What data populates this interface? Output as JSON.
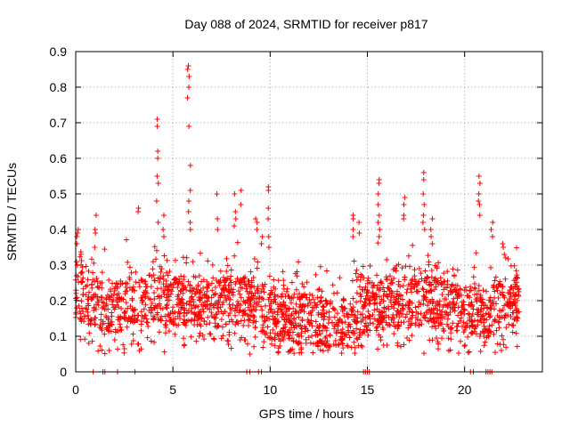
{
  "chart_data": {
    "type": "scatter",
    "title": "Day 088 of 2024, SRMTID for receiver p817",
    "xlabel": "GPS time / hours",
    "ylabel": "SRMTID / TECUs",
    "xlim": [
      0,
      24
    ],
    "ylim": [
      0,
      0.9
    ],
    "grid": true,
    "marker": "+",
    "x_ticks": [
      0,
      5,
      10,
      15,
      20
    ],
    "x_tick_labels": [
      "0",
      "5",
      "10",
      "15",
      "20"
    ],
    "y_ticks": [
      0,
      0.1,
      0.2,
      0.3,
      0.4,
      0.5,
      0.6,
      0.7,
      0.8,
      0.9
    ],
    "y_tick_labels": [
      "0",
      "0.1",
      "0.2",
      "0.3",
      "0.4",
      "0.5",
      "0.6",
      "0.7",
      "0.8",
      "0.9"
    ],
    "series": [
      {
        "name": "SRMTID",
        "color": "#ff0000",
        "baseline": [
          [
            0,
            0.22
          ],
          [
            1,
            0.19
          ],
          [
            2,
            0.18
          ],
          [
            3,
            0.2
          ],
          [
            4,
            0.21
          ],
          [
            5,
            0.2
          ],
          [
            6,
            0.2
          ],
          [
            7,
            0.19
          ],
          [
            8,
            0.2
          ],
          [
            9,
            0.2
          ],
          [
            10,
            0.16
          ],
          [
            11,
            0.15
          ],
          [
            12,
            0.15
          ],
          [
            13,
            0.13
          ],
          [
            14,
            0.14
          ],
          [
            15,
            0.18
          ],
          [
            16,
            0.19
          ],
          [
            17,
            0.2
          ],
          [
            18,
            0.2
          ],
          [
            19,
            0.18
          ],
          [
            20,
            0.18
          ],
          [
            21,
            0.16
          ],
          [
            22,
            0.19
          ],
          [
            22.8,
            0.2
          ]
        ],
        "x_start": 0,
        "x_end": 22.8,
        "points_per_hour": 95,
        "bursts": [
          {
            "x": 0.1,
            "values": [
              0.4,
              0.39,
              0.38,
              0.36
            ]
          },
          {
            "x": 1.0,
            "values": [
              0.44,
              0.4,
              0.39,
              0.35
            ]
          },
          {
            "x": 3.2,
            "values": [
              0.46,
              0.45
            ]
          },
          {
            "x": 4.2,
            "values": [
              0.71,
              0.69,
              0.62,
              0.6,
              0.55,
              0.53,
              0.48,
              0.42
            ]
          },
          {
            "x": 4.5,
            "values": [
              0.44,
              0.4,
              0.38
            ]
          },
          {
            "x": 5.8,
            "values": [
              0.86,
              0.85,
              0.83,
              0.8,
              0.77
            ]
          },
          {
            "x": 5.85,
            "values": [
              0.69,
              0.58,
              0.51,
              0.48,
              0.45,
              0.42,
              0.4
            ]
          },
          {
            "x": 7.3,
            "values": [
              0.5,
              0.43,
              0.4
            ]
          },
          {
            "x": 8.2,
            "values": [
              0.5,
              0.45,
              0.43,
              0.41
            ]
          },
          {
            "x": 8.5,
            "values": [
              0.51,
              0.47
            ]
          },
          {
            "x": 9.3,
            "values": [
              0.43,
              0.42,
              0.4
            ]
          },
          {
            "x": 9.6,
            "values": [
              0.38,
              0.36
            ]
          },
          {
            "x": 9.9,
            "values": [
              0.52,
              0.51,
              0.46,
              0.43,
              0.38,
              0.35
            ]
          },
          {
            "x": 14.3,
            "values": [
              0.44,
              0.43,
              0.4,
              0.38
            ]
          },
          {
            "x": 14.6,
            "values": [
              0.42,
              0.39
            ]
          },
          {
            "x": 15.6,
            "values": [
              0.54,
              0.53,
              0.5,
              0.47,
              0.44,
              0.42,
              0.4,
              0.38
            ]
          },
          {
            "x": 16.9,
            "values": [
              0.49,
              0.47,
              0.44,
              0.43
            ]
          },
          {
            "x": 17.9,
            "values": [
              0.56,
              0.54,
              0.5,
              0.47,
              0.44,
              0.42,
              0.4
            ]
          },
          {
            "x": 18.3,
            "values": [
              0.43,
              0.4,
              0.38,
              0.36
            ]
          },
          {
            "x": 20.75,
            "values": [
              0.55,
              0.53,
              0.5,
              0.48,
              0.47,
              0.44
            ]
          },
          {
            "x": 21.4,
            "values": [
              0.42,
              0.4,
              0.38
            ]
          },
          {
            "x": 22.0,
            "values": [
              0.36,
              0.35,
              0.33
            ]
          }
        ],
        "zero_points": [
          0.9,
          1.4,
          1.5,
          2.15,
          3.05,
          8.8,
          8.95,
          9.4,
          9.55,
          14.8,
          14.9,
          15.0,
          15.1,
          20.3,
          20.45,
          21.1,
          21.2,
          21.3,
          21.4
        ]
      }
    ]
  }
}
